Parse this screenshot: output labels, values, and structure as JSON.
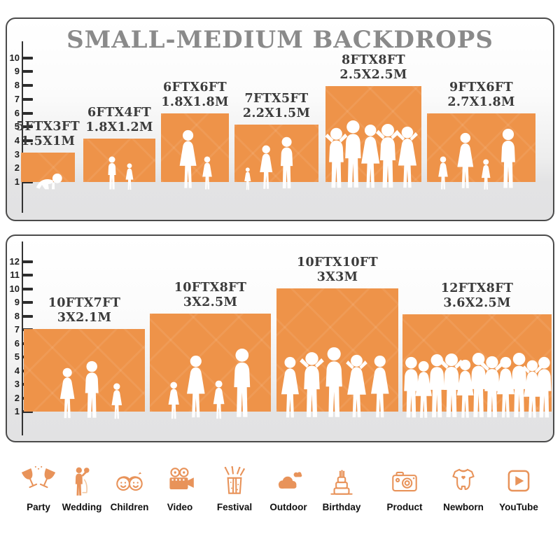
{
  "title": "SMALL-MEDIUM BACKDROPS",
  "colors": {
    "block_orange": "#ee9349",
    "icon_orange": "#e8935a",
    "title_gray": "#8a8a8a"
  },
  "panel_top": {
    "ruler_labels": [
      "1",
      "2",
      "3",
      "4",
      "5",
      "6",
      "7",
      "8",
      "9",
      "10"
    ],
    "blocks": [
      {
        "size_ft": "5FTX3FT",
        "size_m": "1.5X1M"
      },
      {
        "size_ft": "6FTX4FT",
        "size_m": "1.8X1.2M"
      },
      {
        "size_ft": "6FTX6FT",
        "size_m": "1.8X1.8M"
      },
      {
        "size_ft": "7FTX5FT",
        "size_m": "2.2X1.5M"
      },
      {
        "size_ft": "8FTX8FT",
        "size_m": "2.5X2.5M"
      },
      {
        "size_ft": "9FTX6FT",
        "size_m": "2.7X1.8M"
      }
    ]
  },
  "panel_bottom": {
    "ruler_labels": [
      "1",
      "2",
      "3",
      "4",
      "5",
      "6",
      "7",
      "8",
      "9",
      "10",
      "11",
      "12"
    ],
    "blocks": [
      {
        "size_ft": "10FTX7FT",
        "size_m": "3X2.1M"
      },
      {
        "size_ft": "10FTX8FT",
        "size_m": "3X2.5M"
      },
      {
        "size_ft": "10FTX10FT",
        "size_m": "3X3M"
      },
      {
        "size_ft": "12FTX8FT",
        "size_m": "3.6X2.5M"
      }
    ]
  },
  "categories": [
    {
      "label": "Party",
      "icon": "party-icon"
    },
    {
      "label": "Wedding",
      "icon": "wedding-icon"
    },
    {
      "label": "Children",
      "icon": "children-icon"
    },
    {
      "label": "Video",
      "icon": "video-icon"
    },
    {
      "label": "Festival",
      "icon": "festival-icon"
    },
    {
      "label": "Outdoor",
      "icon": "outdoor-icon"
    },
    {
      "label": "Birthday",
      "icon": "birthday-icon"
    },
    {
      "label": "Product",
      "icon": "product-icon"
    },
    {
      "label": "Newborn",
      "icon": "newborn-icon"
    },
    {
      "label": "YouTube",
      "icon": "youtube-icon"
    }
  ]
}
